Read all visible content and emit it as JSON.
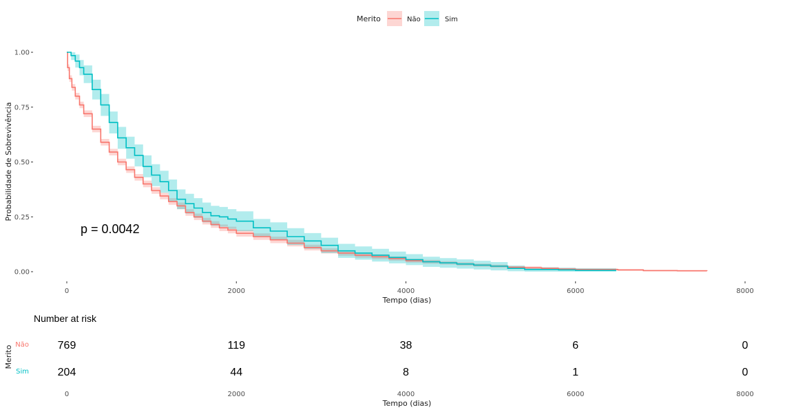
{
  "colors": {
    "nao": "#F8766D",
    "sim": "#00BFC4",
    "nao_band": "#F8766D",
    "sim_band": "#00BFC4"
  },
  "legend": {
    "title": "Merito",
    "items": [
      {
        "key": "nao",
        "label": "Não"
      },
      {
        "key": "sim",
        "label": "Sim"
      }
    ]
  },
  "chart_data": [
    {
      "type": "line",
      "subtype": "kaplan-meier survival curve with confidence bands",
      "xlabel": "Tempo (dias)",
      "ylabel": "Probabilidade de Sobrevivência",
      "xlim": [
        0,
        8000
      ],
      "ylim": [
        0,
        1
      ],
      "x_ticks": [
        0,
        2000,
        4000,
        6000,
        8000
      ],
      "x_tick_labels": [
        "0",
        "2000",
        "4000",
        "6000",
        "8000"
      ],
      "y_ticks": [
        0,
        0.25,
        0.5,
        0.75,
        1.0
      ],
      "y_tick_labels": [
        "0.00",
        "0.25",
        "0.50",
        "0.75",
        "1.00"
      ],
      "grid": false,
      "legend_position": "top",
      "annotation": "p = 0.0042",
      "series": [
        {
          "name": "Não",
          "key": "nao",
          "x": [
            0,
            10,
            30,
            60,
            100,
            150,
            200,
            300,
            400,
            500,
            600,
            700,
            800,
            900,
            1000,
            1100,
            1200,
            1300,
            1400,
            1500,
            1600,
            1700,
            1800,
            1900,
            2000,
            2200,
            2400,
            2600,
            2800,
            3000,
            3200,
            3400,
            3600,
            3800,
            4000,
            4200,
            4400,
            4600,
            4800,
            5000,
            5200,
            5400,
            5600,
            5800,
            6000,
            6200,
            6500,
            6800,
            7200,
            7550
          ],
          "y": [
            1.0,
            0.93,
            0.88,
            0.84,
            0.8,
            0.76,
            0.72,
            0.65,
            0.59,
            0.545,
            0.5,
            0.465,
            0.43,
            0.4,
            0.37,
            0.345,
            0.32,
            0.3,
            0.27,
            0.25,
            0.23,
            0.215,
            0.2,
            0.19,
            0.175,
            0.16,
            0.145,
            0.13,
            0.11,
            0.095,
            0.085,
            0.075,
            0.068,
            0.06,
            0.05,
            0.045,
            0.04,
            0.035,
            0.03,
            0.025,
            0.02,
            0.018,
            0.015,
            0.012,
            0.01,
            0.01,
            0.008,
            0.005,
            0.004,
            0.003
          ],
          "lower": [
            1.0,
            0.915,
            0.865,
            0.825,
            0.785,
            0.745,
            0.705,
            0.635,
            0.575,
            0.53,
            0.485,
            0.45,
            0.415,
            0.385,
            0.355,
            0.33,
            0.305,
            0.285,
            0.255,
            0.235,
            0.215,
            0.2,
            0.185,
            0.175,
            0.16,
            0.145,
            0.13,
            0.115,
            0.097,
            0.083,
            0.073,
            0.064,
            0.057,
            0.05,
            0.041,
            0.036,
            0.032,
            0.027,
            0.023,
            0.018,
            0.014,
            0.012,
            0.01,
            0.007,
            0.006,
            0.006,
            0.004,
            0.002,
            0.001,
            0.0
          ],
          "upper": [
            1.0,
            0.945,
            0.895,
            0.855,
            0.815,
            0.775,
            0.735,
            0.665,
            0.605,
            0.56,
            0.515,
            0.48,
            0.445,
            0.415,
            0.385,
            0.36,
            0.335,
            0.315,
            0.285,
            0.265,
            0.245,
            0.23,
            0.215,
            0.205,
            0.19,
            0.175,
            0.16,
            0.145,
            0.123,
            0.107,
            0.097,
            0.086,
            0.079,
            0.07,
            0.059,
            0.054,
            0.048,
            0.043,
            0.037,
            0.032,
            0.026,
            0.024,
            0.02,
            0.017,
            0.014,
            0.014,
            0.012,
            0.008,
            0.007,
            0.006
          ]
        },
        {
          "name": "Sim",
          "key": "sim",
          "x": [
            0,
            50,
            100,
            150,
            200,
            300,
            400,
            500,
            600,
            700,
            800,
            900,
            1000,
            1100,
            1200,
            1300,
            1400,
            1500,
            1600,
            1700,
            1800,
            1900,
            2000,
            2200,
            2400,
            2600,
            2800,
            3000,
            3200,
            3400,
            3600,
            3800,
            4000,
            4200,
            4400,
            4600,
            4800,
            5000,
            5200,
            5400,
            5600,
            5800,
            6000,
            6200,
            6480
          ],
          "y": [
            1.0,
            0.985,
            0.96,
            0.93,
            0.9,
            0.83,
            0.76,
            0.68,
            0.61,
            0.565,
            0.53,
            0.48,
            0.44,
            0.41,
            0.37,
            0.33,
            0.31,
            0.29,
            0.27,
            0.255,
            0.25,
            0.24,
            0.23,
            0.2,
            0.185,
            0.16,
            0.14,
            0.12,
            0.095,
            0.085,
            0.075,
            0.065,
            0.055,
            0.045,
            0.04,
            0.035,
            0.03,
            0.025,
            0.015,
            0.01,
            0.01,
            0.008,
            0.006,
            0.006,
            0.006
          ],
          "lower": [
            1.0,
            0.965,
            0.93,
            0.895,
            0.86,
            0.785,
            0.71,
            0.63,
            0.56,
            0.515,
            0.48,
            0.43,
            0.39,
            0.36,
            0.32,
            0.285,
            0.265,
            0.245,
            0.225,
            0.21,
            0.205,
            0.195,
            0.185,
            0.16,
            0.145,
            0.122,
            0.104,
            0.085,
            0.063,
            0.055,
            0.046,
            0.038,
            0.03,
            0.022,
            0.018,
            0.014,
            0.01,
            0.006,
            0.002,
            0.0,
            0.0,
            0.0,
            0.0,
            0.0,
            0.0
          ],
          "upper": [
            1.0,
            1.0,
            0.99,
            0.965,
            0.94,
            0.875,
            0.81,
            0.73,
            0.66,
            0.615,
            0.58,
            0.53,
            0.49,
            0.46,
            0.42,
            0.375,
            0.355,
            0.335,
            0.315,
            0.3,
            0.295,
            0.285,
            0.275,
            0.24,
            0.225,
            0.198,
            0.176,
            0.155,
            0.127,
            0.115,
            0.104,
            0.092,
            0.08,
            0.068,
            0.062,
            0.056,
            0.05,
            0.044,
            0.028,
            0.02,
            0.02,
            0.018,
            0.016,
            0.016,
            0.016
          ]
        }
      ]
    },
    {
      "type": "table",
      "title": "Number at risk",
      "ylabel": "Merito",
      "xlabel": "Tempo (dias)",
      "x_ticks": [
        0,
        2000,
        4000,
        6000,
        8000
      ],
      "x_tick_labels": [
        "0",
        "2000",
        "4000",
        "6000",
        "8000"
      ],
      "rows": [
        {
          "key": "nao",
          "label": "Não",
          "values": [
            769,
            119,
            38,
            6,
            0
          ]
        },
        {
          "key": "sim",
          "label": "Sim",
          "values": [
            204,
            44,
            8,
            1,
            0
          ]
        }
      ]
    }
  ]
}
